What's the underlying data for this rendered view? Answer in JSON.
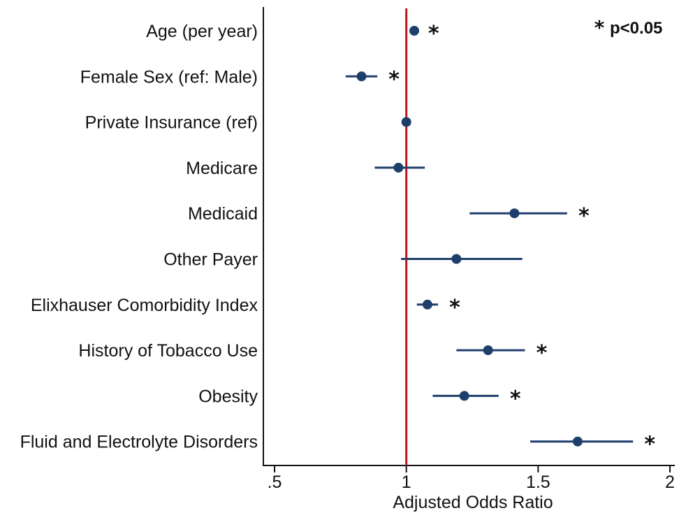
{
  "chart_data": {
    "type": "forest",
    "xlabel": "Adjusted Odds Ratio",
    "xlim": [
      0.5,
      2.0
    ],
    "xticks": [
      {
        "value": 0.5,
        "label": ".5"
      },
      {
        "value": 1,
        "label": "1"
      },
      {
        "value": 1.5,
        "label": "1.5"
      },
      {
        "value": 2,
        "label": "2"
      }
    ],
    "reference_line": {
      "value": 1,
      "color": "#c0141c"
    },
    "marker_color": "#1f3f6b",
    "significance_legend": {
      "symbol": "*",
      "text": "p<0.05",
      "placement": "top-right"
    },
    "rows": [
      {
        "label": "Age (per year)",
        "or": 1.03,
        "lo": 1.02,
        "hi": 1.04,
        "significant": true,
        "marker": "*"
      },
      {
        "label": "Female Sex (ref: Male)",
        "or": 0.83,
        "lo": 0.77,
        "hi": 0.89,
        "significant": true,
        "marker": "*"
      },
      {
        "label": "Private Insurance (ref)",
        "or": 1.0,
        "lo": 1.0,
        "hi": 1.0,
        "significant": false,
        "marker": ""
      },
      {
        "label": "Medicare",
        "or": 0.97,
        "lo": 0.88,
        "hi": 1.07,
        "significant": false,
        "marker": ""
      },
      {
        "label": "Medicaid",
        "or": 1.41,
        "lo": 1.24,
        "hi": 1.61,
        "significant": true,
        "marker": "*"
      },
      {
        "label": "Other Payer",
        "or": 1.19,
        "lo": 0.98,
        "hi": 1.44,
        "significant": false,
        "marker": ""
      },
      {
        "label": "Elixhauser Comorbidity Index",
        "or": 1.08,
        "lo": 1.04,
        "hi": 1.12,
        "significant": true,
        "marker": "*"
      },
      {
        "label": "History of Tobacco Use",
        "or": 1.31,
        "lo": 1.19,
        "hi": 1.45,
        "significant": true,
        "marker": "*"
      },
      {
        "label": "Obesity",
        "or": 1.22,
        "lo": 1.1,
        "hi": 1.35,
        "significant": true,
        "marker": "*"
      },
      {
        "label": "Fluid and Electrolyte Disorders",
        "or": 1.65,
        "lo": 1.47,
        "hi": 1.86,
        "significant": true,
        "marker": "*"
      }
    ]
  }
}
